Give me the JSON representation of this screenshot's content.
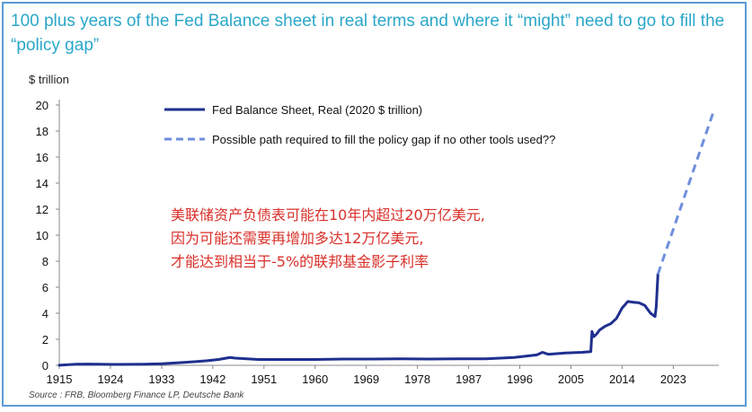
{
  "chart_data": {
    "type": "line",
    "title": "100 plus years of the Fed Balance sheet in real terms and where it “might” need to go to fill the “policy gap”",
    "ylabel": "$ trillion",
    "xlabel": "",
    "xlim": [
      1915,
      2031
    ],
    "ylim": [
      0,
      20
    ],
    "x_ticks": [
      "1915",
      "1924",
      "1933",
      "1942",
      "1951",
      "1960",
      "1969",
      "1978",
      "1987",
      "1996",
      "2005",
      "2014",
      "2023"
    ],
    "y_ticks": [
      "0",
      "2",
      "4",
      "6",
      "8",
      "10",
      "12",
      "14",
      "16",
      "18",
      "20"
    ],
    "grid": false,
    "legend_position": "top-center",
    "series": [
      {
        "name": "Fed Balance Sheet, Real (2020 $ trillion)",
        "style": "solid",
        "color": "#1f2f8f",
        "x": [
          1915,
          1918,
          1920,
          1922,
          1925,
          1930,
          1933,
          1936,
          1939,
          1941,
          1943,
          1945,
          1946,
          1948,
          1950,
          1955,
          1960,
          1965,
          1970,
          1975,
          1980,
          1985,
          1990,
          1995,
          1999,
          2000,
          2001,
          2004,
          2007,
          2008.5,
          2008.7,
          2009,
          2009.5,
          2010,
          2011,
          2012,
          2013,
          2014,
          2015,
          2016,
          2017,
          2018,
          2019,
          2019.8,
          2020,
          2020.3
        ],
        "values": [
          0.01,
          0.08,
          0.1,
          0.08,
          0.07,
          0.08,
          0.12,
          0.2,
          0.28,
          0.35,
          0.45,
          0.6,
          0.55,
          0.5,
          0.45,
          0.45,
          0.45,
          0.48,
          0.48,
          0.5,
          0.48,
          0.5,
          0.5,
          0.6,
          0.8,
          1.0,
          0.85,
          0.95,
          1.0,
          1.05,
          2.6,
          2.2,
          2.4,
          2.7,
          3.0,
          3.2,
          3.6,
          4.4,
          4.9,
          4.85,
          4.8,
          4.6,
          4.0,
          3.75,
          4.5,
          7.0
        ]
      },
      {
        "name": "Possible path required to fill the policy gap if no other tools used??",
        "style": "dashed",
        "color": "#6f8fdc",
        "x": [
          2020.3,
          2030
        ],
        "values": [
          7.0,
          19.4
        ]
      }
    ],
    "annotations": [
      "美联储资产负债表可能在10年内超过20万亿美元,",
      "因为可能还需要再增加多达12万亿美元,",
      "才能达到相当于-5%的联邦基金影子利率"
    ],
    "source": "Source : FRB, Bloomberg Finance LP, Deutsche Bank"
  },
  "colors": {
    "title": "#2aa7c9",
    "border": "#5b9bd5",
    "annotation": "#d9302a"
  }
}
